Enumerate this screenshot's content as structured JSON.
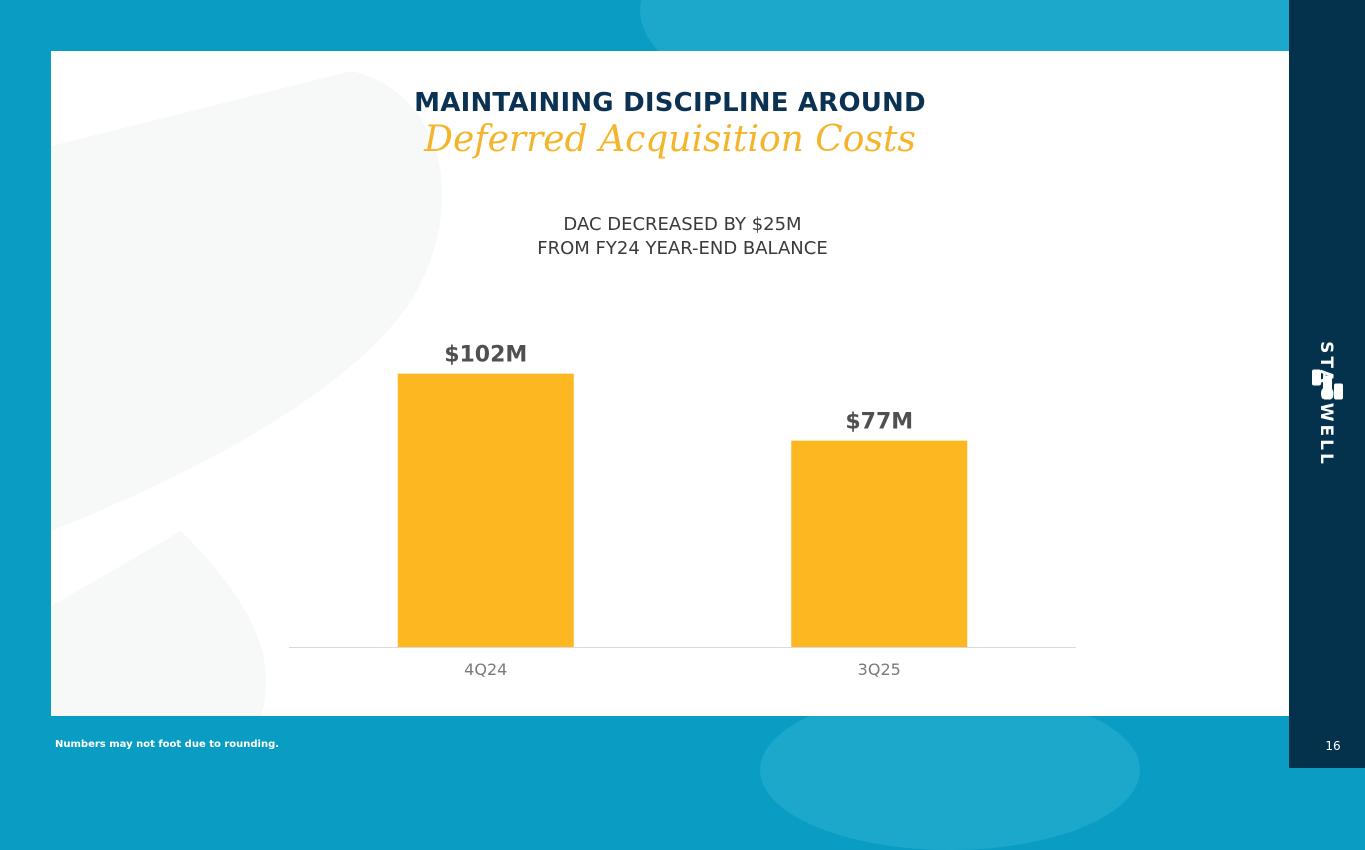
{
  "slide": {
    "title": "MAINTAINING DISCIPLINE AROUND",
    "subtitle": "Deferred Acquisition Costs",
    "caption_line1": "DAC DECREASED BY $25M",
    "caption_line2": "FROM FY24 YEAR-END BALANCE",
    "footnote": "Numbers may not foot due to rounding.",
    "page_number": "16",
    "brand": "STAGWELL"
  },
  "colors": {
    "accent": "#0a9dc3",
    "sidebar": "#04314b",
    "title": "#0b3252",
    "subtitle": "#f4b42c",
    "bar": "#fdb720",
    "data_label": "#505050",
    "tick_label": "#7a7a7a"
  },
  "chart_data": {
    "type": "bar",
    "categories": [
      "4Q24",
      "3Q25"
    ],
    "values": [
      102,
      77
    ],
    "data_labels": [
      "$102M",
      "$77M"
    ],
    "ylim": [
      0,
      125
    ],
    "grid": false,
    "legend": "none"
  }
}
